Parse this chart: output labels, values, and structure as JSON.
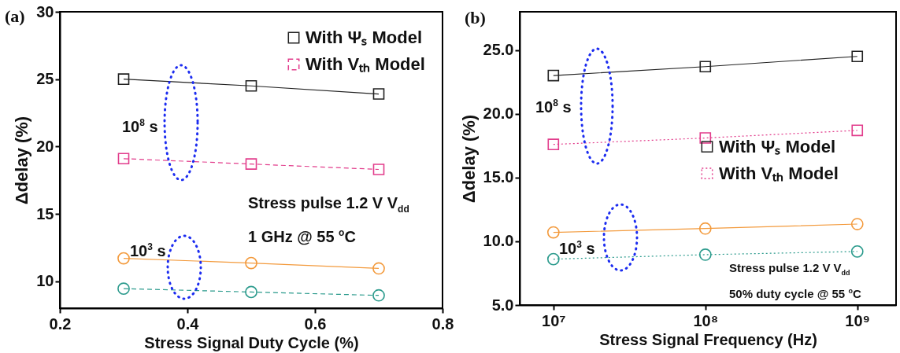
{
  "chart_data": [
    {
      "type": "line",
      "xlabel": "Stress Signal Duty Cycle (%)",
      "ylabel": "Δdelay (%)",
      "x": [
        0.3,
        0.5,
        0.7
      ],
      "xlim": [
        0.2,
        0.8
      ],
      "xticks": [
        0.2,
        0.4,
        0.6,
        0.8
      ],
      "ylim": [
        8,
        30
      ],
      "yticks": [
        10,
        15,
        20,
        25,
        30
      ],
      "grid": false,
      "legend": "top right",
      "annotations": [
        "(a)",
        "10$^{8}$ s",
        "10$^{3}$ s",
        "Stress pulse 1.2 V V$_{dd}$",
        "1 GHz @ 55 $^{o}$C"
      ],
      "series": [
        {
          "name": "With Ψₛ Model",
          "color": "#222222",
          "marker": "square",
          "line_style": "solid",
          "values": [
            25.0,
            24.5,
            23.9
          ]
        },
        {
          "name": "With Vₜₕ Model",
          "color": "#e23d8c",
          "marker": "square",
          "line_style": "dashed",
          "values": [
            19.1,
            18.7,
            18.3
          ]
        },
        {
          "color": "#f39a3c",
          "marker": "circle",
          "line_style": "solid",
          "values": [
            11.7,
            11.35,
            10.95
          ]
        },
        {
          "color": "#2a9a8c",
          "marker": "circle",
          "line_style": "dashed",
          "values": [
            9.45,
            9.2,
            8.95
          ]
        }
      ]
    },
    {
      "type": "line",
      "xlabel": "Stress Signal Frequency (Hz)",
      "ylabel": "Δdelay (%)",
      "log": "x",
      "x": [
        10000000,
        100000000,
        1000000000
      ],
      "xlim": [
        6000000,
        1800000000
      ],
      "xticks": [
        {
          "value": 10000000,
          "label": "10⁷"
        },
        {
          "value": 100000000,
          "label": "10⁸"
        },
        {
          "value": 1000000000,
          "label": "10⁹"
        }
      ],
      "ylim": [
        5,
        28
      ],
      "yticks": [
        {
          "value": 5,
          "label": "5.0"
        },
        {
          "value": 10,
          "label": "10.0"
        },
        {
          "value": 15,
          "label": "15.0"
        },
        {
          "value": 20,
          "label": "20.0"
        },
        {
          "value": 25,
          "label": "25.0"
        }
      ],
      "grid": false,
      "legend": "right",
      "annotations": [
        "(b)",
        "10$^{8}$ s",
        "10$^{3}$ s",
        "Stress pulse 1.2 V V$_{dd}$",
        "50% duty cycle @ 55 $^{o}$C"
      ],
      "series": [
        {
          "name": "With Ψₛ Model",
          "color": "#222222",
          "marker": "square",
          "line_style": "solid",
          "values": [
            23.0,
            23.7,
            24.5
          ]
        },
        {
          "name": "With Vₜₕ Model",
          "color": "#e23d8c",
          "marker": "square",
          "line_style": "dotted",
          "values": [
            17.6,
            18.1,
            18.7
          ]
        },
        {
          "color": "#f39a3c",
          "marker": "circle",
          "line_style": "solid",
          "values": [
            10.7,
            11.0,
            11.35
          ]
        },
        {
          "color": "#2a9a8c",
          "marker": "circle",
          "line_style": "dotted",
          "values": [
            8.6,
            8.95,
            9.2
          ]
        }
      ]
    }
  ]
}
